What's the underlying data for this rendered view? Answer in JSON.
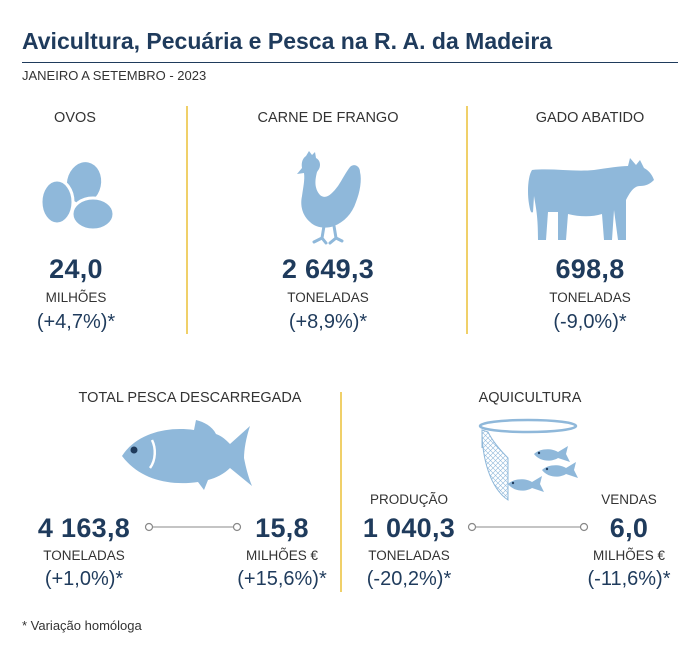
{
  "header": {
    "title": "Avicultura, Pecuária e Pesca na R. A. da Madeira",
    "subtitle": "JANEIRO A SETEMBRO - 2023"
  },
  "colors": {
    "icon": "#8fb8da",
    "text": "#1f3b5c",
    "separator": "#f0d069"
  },
  "ovos": {
    "label": "OVOS",
    "icon": "eggs-icon",
    "value": "24,0",
    "unit": "MILHÕES",
    "change": "(+4,7%)*"
  },
  "frango": {
    "label": "CARNE DE FRANGO",
    "icon": "chicken-icon",
    "value": "2 649,3",
    "unit": "TONELADAS",
    "change": "(+8,9%)*"
  },
  "gado": {
    "label": "GADO ABATIDO",
    "icon": "cow-icon",
    "value": "698,8",
    "unit": "TONELADAS",
    "change": "(-9,0%)*"
  },
  "pesca": {
    "label": "TOTAL PESCA DESCARREGADA",
    "icon": "fish-icon",
    "quantity": {
      "value": "4 163,8",
      "unit": "TONELADAS",
      "change": "(+1,0%)*"
    },
    "money": {
      "value": "15,8",
      "unit": "MILHÕES €",
      "change": "(+15,6%)*"
    }
  },
  "aquicultura": {
    "label": "AQUICULTURA",
    "icon": "fish-cage-icon",
    "producao": {
      "label": "PRODUÇÃO",
      "value": "1 040,3",
      "unit": "TONELADAS",
      "change": "(-20,2%)*"
    },
    "vendas": {
      "label": "VENDAS",
      "value": "6,0",
      "unit": "MILHÕES €",
      "change": "(-11,6%)*"
    }
  },
  "footnote": "* Variação homóloga"
}
